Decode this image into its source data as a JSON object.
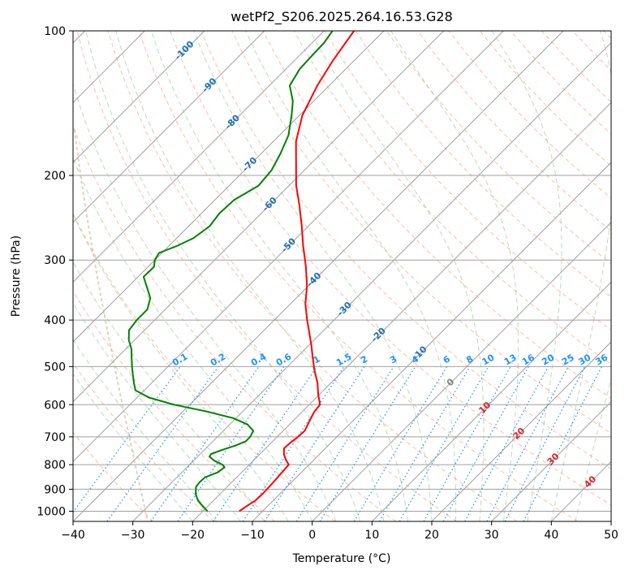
{
  "chart_data": {
    "type": "line",
    "title": "wetPf2_S206.2025.264.16.53.G28",
    "xlabel": "Temperature (°C)",
    "ylabel": "Pressure (hPa)",
    "xlim": [
      -40,
      50
    ],
    "ylim": [
      1050,
      100
    ],
    "x_ticks": [
      -40,
      -30,
      -20,
      -10,
      0,
      10,
      20,
      30,
      40,
      50
    ],
    "x_tick_labels": [
      "−40",
      "−30",
      "−20",
      "−10",
      "0",
      "10",
      "20",
      "30",
      "40",
      "50"
    ],
    "y_ticks": [
      100,
      200,
      300,
      400,
      500,
      600,
      700,
      800,
      900,
      1000
    ],
    "y_tick_labels": [
      "100",
      "200",
      "300",
      "400",
      "500",
      "600",
      "700",
      "800",
      "900",
      "1000"
    ],
    "skew_deg": 45,
    "isotherm_labels": [
      "-100",
      "-90",
      "-80",
      "-70",
      "-60",
      "-50",
      "-40",
      "-30",
      "-20",
      "-10"
    ],
    "isotherm_label_values": [
      -100,
      -90,
      -80,
      -70,
      -60,
      -50,
      -40,
      -30,
      -20,
      -10
    ],
    "mixing_ratio_labels": [
      "0.1",
      "0.2",
      "0.4",
      "0.6",
      "1",
      "1.5",
      "2",
      "3",
      "4",
      "6",
      "8",
      "10",
      "13",
      "16",
      "20",
      "25",
      "30",
      "36"
    ],
    "mixing_ratio_values": [
      0.1,
      0.2,
      0.4,
      0.6,
      1,
      1.5,
      2,
      3,
      4,
      6,
      8,
      10,
      13,
      16,
      20,
      25,
      30,
      36
    ],
    "warm_isotherm_labels": [
      "0",
      "10",
      "20",
      "30",
      "40"
    ],
    "series": [
      {
        "name": "Temperature",
        "color": "#ff0000",
        "points": [
          [
            1000,
            -13.9
          ],
          [
            980,
            -13.6
          ],
          [
            950,
            -13.0
          ],
          [
            920,
            -12.9
          ],
          [
            880,
            -13.0
          ],
          [
            840,
            -13.2
          ],
          [
            800,
            -13.4
          ],
          [
            780,
            -14.8
          ],
          [
            760,
            -16.0
          ],
          [
            740,
            -16.9
          ],
          [
            720,
            -16.8
          ],
          [
            700,
            -16.5
          ],
          [
            680,
            -16.4
          ],
          [
            650,
            -17.2
          ],
          [
            620,
            -18.0
          ],
          [
            600,
            -18.2
          ],
          [
            570,
            -20.3
          ],
          [
            540,
            -22.3
          ],
          [
            510,
            -24.8
          ],
          [
            480,
            -27.2
          ],
          [
            450,
            -29.7
          ],
          [
            420,
            -32.5
          ],
          [
            400,
            -34.5
          ],
          [
            370,
            -37.5
          ],
          [
            340,
            -40.2
          ],
          [
            310,
            -43.6
          ],
          [
            280,
            -47.6
          ],
          [
            255,
            -51.1
          ],
          [
            230,
            -55.1
          ],
          [
            210,
            -58.8
          ],
          [
            190,
            -62.3
          ],
          [
            170,
            -66.2
          ],
          [
            150,
            -69.5
          ],
          [
            130,
            -72.0
          ],
          [
            115,
            -73.6
          ],
          [
            100,
            -75.0
          ]
        ]
      },
      {
        "name": "Dewpoint",
        "color": "#008000",
        "points": [
          [
            1000,
            -19.2
          ],
          [
            980,
            -20.6
          ],
          [
            950,
            -22.6
          ],
          [
            920,
            -24.1
          ],
          [
            890,
            -25.2
          ],
          [
            870,
            -25.4
          ],
          [
            850,
            -25.3
          ],
          [
            830,
            -24.0
          ],
          [
            810,
            -23.7
          ],
          [
            800,
            -24.5
          ],
          [
            785,
            -26.5
          ],
          [
            770,
            -28.0
          ],
          [
            760,
            -28.2
          ],
          [
            745,
            -27.0
          ],
          [
            730,
            -25.5
          ],
          [
            715,
            -24.5
          ],
          [
            700,
            -24.5
          ],
          [
            680,
            -25.0
          ],
          [
            660,
            -27.0
          ],
          [
            640,
            -30.5
          ],
          [
            620,
            -36.0
          ],
          [
            600,
            -42.6
          ],
          [
            580,
            -48.0
          ],
          [
            560,
            -51.5
          ],
          [
            540,
            -53.0
          ],
          [
            520,
            -54.5
          ],
          [
            500,
            -56.0
          ],
          [
            480,
            -57.5
          ],
          [
            460,
            -59.0
          ],
          [
            440,
            -61.0
          ],
          [
            420,
            -62.6
          ],
          [
            400,
            -63.0
          ],
          [
            380,
            -63.0
          ],
          [
            360,
            -64.4
          ],
          [
            340,
            -67.0
          ],
          [
            325,
            -69.1
          ],
          [
            310,
            -69.0
          ],
          [
            300,
            -70.0
          ],
          [
            290,
            -70.5
          ],
          [
            280,
            -68.6
          ],
          [
            270,
            -67.2
          ],
          [
            255,
            -66.5
          ],
          [
            240,
            -67.0
          ],
          [
            225,
            -66.8
          ],
          [
            210,
            -65.1
          ],
          [
            195,
            -65.5
          ],
          [
            180,
            -66.8
          ],
          [
            165,
            -68.5
          ],
          [
            150,
            -71.3
          ],
          [
            140,
            -73.5
          ],
          [
            130,
            -76.6
          ],
          [
            120,
            -77.7
          ],
          [
            112,
            -77.9
          ],
          [
            106,
            -78.0
          ],
          [
            100,
            -78.6
          ]
        ]
      }
    ]
  },
  "colors": {
    "temperature": "#ff0000",
    "dewpoint": "#008000",
    "dry_adiabat": "#ff9f80",
    "moist_adiabat": "#80c080",
    "mixing_ratio": "#1e90ff",
    "isotherm_grid": "#a0a0a0",
    "isotherm_label": "#1f6fb0",
    "warm_label": "#d62728",
    "zero_label": "#7f7f7f",
    "tan_curve": "#d2b48c"
  }
}
